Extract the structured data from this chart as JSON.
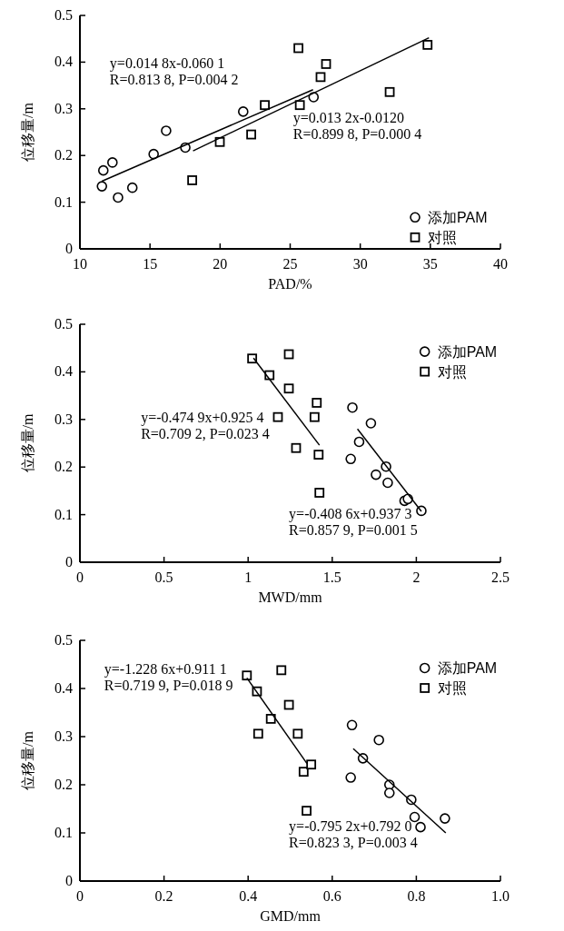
{
  "chart_data": [
    {
      "type": "scatter",
      "xlabel": "PAD/%",
      "ylabel": "位移量/m",
      "xlim": [
        10,
        40
      ],
      "ylim": [
        0,
        0.5
      ],
      "xticks": [
        10,
        15,
        20,
        25,
        30,
        35,
        40
      ],
      "yticks": [
        0,
        0.1,
        0.2,
        0.3,
        0.4,
        0.5
      ],
      "legend": "bottom right",
      "grid": false,
      "series": [
        {
          "name": "添加PAM",
          "type": "scatter",
          "marker": "circle",
          "color": "#000000",
          "x": [
            11.57,
            11.67,
            12.32,
            12.72,
            13.74,
            15.26,
            16.15,
            17.52,
            21.65,
            26.67
          ],
          "values": [
            0.134,
            0.168,
            0.185,
            0.11,
            0.131,
            0.203,
            0.253,
            0.217,
            0.294,
            0.325
          ]
        },
        {
          "name": "对照",
          "type": "scatter",
          "marker": "square",
          "color": "#000000",
          "x": [
            18.01,
            19.98,
            22.22,
            23.19,
            25.59,
            25.69,
            27.17,
            27.56,
            32.1,
            34.8
          ],
          "values": [
            0.147,
            0.229,
            0.245,
            0.308,
            0.43,
            0.308,
            0.368,
            0.396,
            0.336,
            0.437
          ]
        },
        {
          "type": "line",
          "color": "#000000",
          "x": [
            11.57,
            26.63
          ],
          "values": [
            0.145,
            0.341
          ]
        },
        {
          "type": "line",
          "color": "#000000",
          "x": [
            18.07,
            34.9
          ],
          "values": [
            0.21,
            0.452
          ]
        }
      ],
      "annotations": [
        "y=0.014 8x-0.060 1",
        "R=0.813 8, P=0.004 2",
        "y=0.013 2x-0.0120",
        "R=0.899 8, P=0.000 4"
      ]
    },
    {
      "type": "scatter",
      "xlabel": "MWD/mm",
      "ylabel": "位移量/m",
      "xlim": [
        0,
        2.5
      ],
      "ylim": [
        0,
        0.5
      ],
      "xticks": [
        0,
        0.5,
        1,
        1.5,
        2,
        2.5
      ],
      "yticks": [
        0,
        0.1,
        0.2,
        0.3,
        0.4,
        0.5
      ],
      "legend": "top right",
      "grid": false,
      "series": [
        {
          "name": "添加PAM",
          "type": "scatter",
          "marker": "circle",
          "color": "#000000",
          "x": [
            1.61,
            1.62,
            1.66,
            1.73,
            1.76,
            1.82,
            1.83,
            1.93,
            1.95,
            2.03
          ],
          "values": [
            0.217,
            0.325,
            0.253,
            0.292,
            0.184,
            0.201,
            0.167,
            0.129,
            0.133,
            0.108
          ]
        },
        {
          "name": "对照",
          "type": "scatter",
          "marker": "square",
          "color": "#000000",
          "x": [
            1.024,
            1.127,
            1.242,
            1.242,
            1.177,
            1.408,
            1.395,
            1.285,
            1.419,
            1.424
          ],
          "values": [
            0.428,
            0.393,
            0.437,
            0.365,
            0.305,
            0.335,
            0.305,
            0.24,
            0.226,
            0.146
          ]
        },
        {
          "type": "line",
          "color": "#000000",
          "x": [
            1.032,
            1.424
          ],
          "values": [
            0.429,
            0.246
          ]
        },
        {
          "type": "line",
          "color": "#000000",
          "x": [
            1.65,
            2.03
          ],
          "values": [
            0.28,
            0.107
          ]
        }
      ],
      "annotations": [
        "y=-0.474 9x+0.925 4",
        "R=0.709 2, P=0.023 4",
        "y=-0.408 6x+0.937 3",
        "R=0.857 9, P=0.001 5"
      ]
    },
    {
      "type": "scatter",
      "xlabel": "GMD/mm",
      "ylabel": "位移量/m",
      "xlim": [
        0,
        1
      ],
      "ylim": [
        0,
        0.5
      ],
      "xticks": [
        0,
        0.2,
        0.4,
        0.6,
        0.8,
        {
          "value": 1,
          "label": "1.0"
        }
      ],
      "yticks": [
        0,
        0.1,
        0.2,
        0.3,
        0.4,
        0.5
      ],
      "legend": "top right",
      "grid": false,
      "series": [
        {
          "name": "添加PAM",
          "type": "scatter",
          "marker": "circle",
          "color": "#000000",
          "x": [
            0.647,
            0.644,
            0.673,
            0.711,
            0.736,
            0.736,
            0.788,
            0.796,
            0.81,
            0.868
          ],
          "values": [
            0.324,
            0.215,
            0.255,
            0.293,
            0.2,
            0.183,
            0.169,
            0.133,
            0.112,
            0.13
          ]
        },
        {
          "name": "对照",
          "type": "scatter",
          "marker": "square",
          "color": "#000000",
          "x": [
            0.397,
            0.421,
            0.424,
            0.454,
            0.479,
            0.497,
            0.518,
            0.532,
            0.55,
            0.539
          ],
          "values": [
            0.427,
            0.394,
            0.306,
            0.337,
            0.438,
            0.366,
            0.306,
            0.227,
            0.242,
            0.146
          ]
        },
        {
          "type": "line",
          "color": "#000000",
          "x": [
            0.397,
            0.54
          ],
          "values": [
            0.422,
            0.244
          ]
        },
        {
          "type": "line",
          "color": "#000000",
          "x": [
            0.65,
            0.87
          ],
          "values": [
            0.275,
            0.1
          ]
        }
      ],
      "annotations": [
        "y=-1.228 6x+0.911 1",
        "R=0.719 9, P=0.018 9",
        "y=-0.795 2x+0.792 0",
        "R=0.823 3, P=0.003 4"
      ]
    }
  ]
}
